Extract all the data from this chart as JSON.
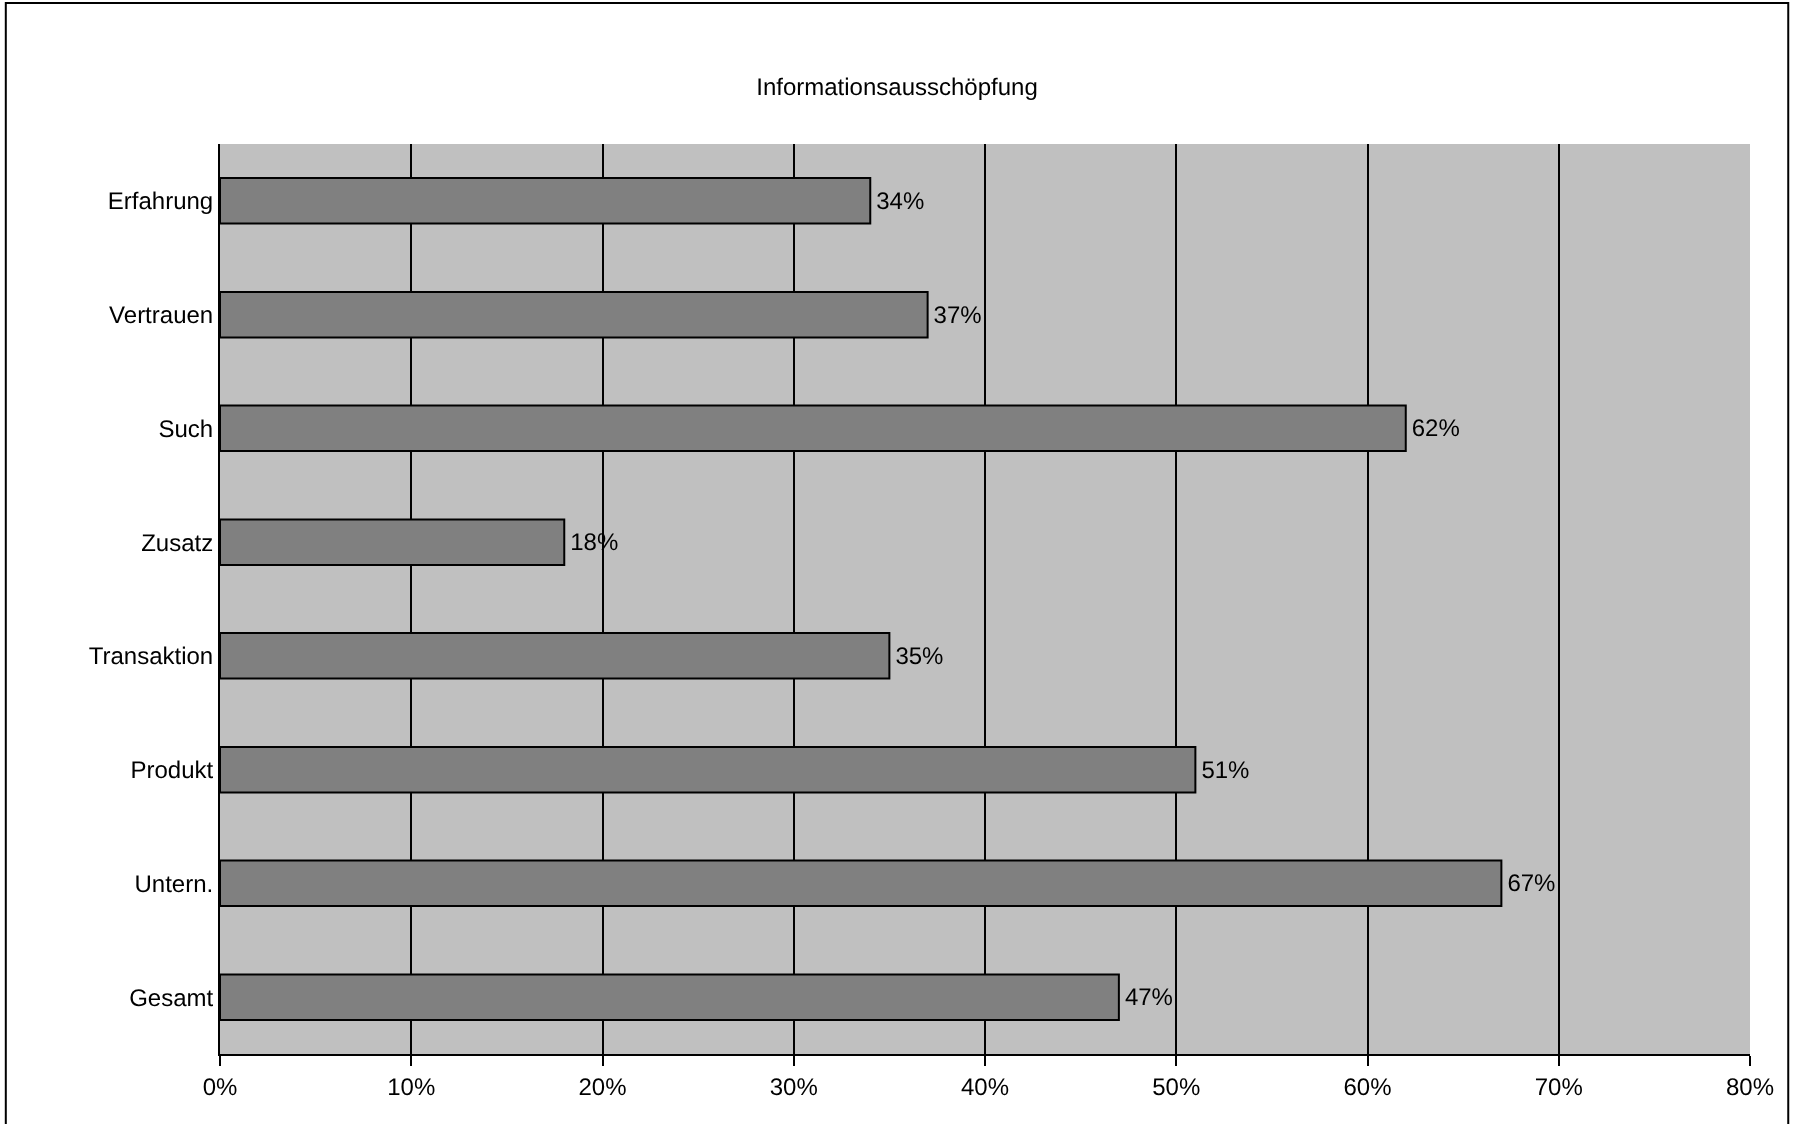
{
  "chart_data": {
    "type": "bar",
    "orientation": "horizontal",
    "title": "Informationsausschöpfung",
    "categories": [
      "Erfahrung",
      "Vertrauen",
      "Such",
      "Zusatz",
      "Transaktion",
      "Produkt",
      "Untern.",
      "Gesamt"
    ],
    "values": [
      34,
      37,
      62,
      18,
      35,
      51,
      67,
      47
    ],
    "value_labels": [
      "34%",
      "37%",
      "62%",
      "18%",
      "35%",
      "51%",
      "67%",
      "47%"
    ],
    "color": "#808080",
    "xlim": [
      0,
      80
    ],
    "xticks": [
      {
        "value": 0,
        "label": "0%"
      },
      {
        "value": 10,
        "label": "10%"
      },
      {
        "value": 20,
        "label": "20%"
      },
      {
        "value": 30,
        "label": "30%"
      },
      {
        "value": 40,
        "label": "40%"
      },
      {
        "value": 50,
        "label": "50%"
      },
      {
        "value": 60,
        "label": "60%"
      },
      {
        "value": 70,
        "label": "70%"
      },
      {
        "value": 80,
        "label": "80%"
      }
    ],
    "grid": "x",
    "legend": false
  }
}
